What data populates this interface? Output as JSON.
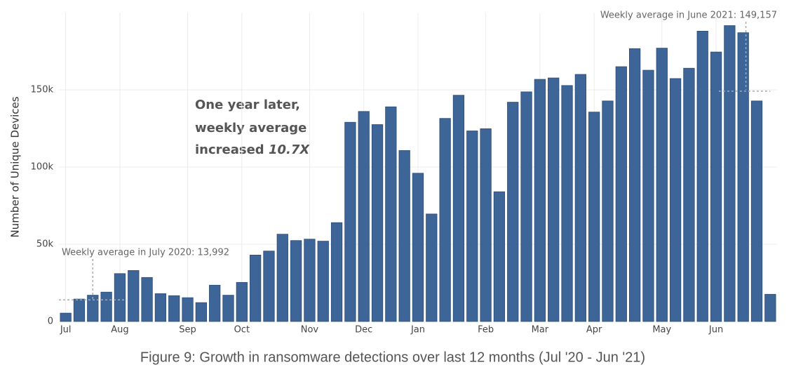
{
  "chart_data": {
    "type": "bar",
    "y_label": "Number of Unique Devices",
    "caption": "Figure 9: Growth in ransomware detections over last 12 months (Jul '20 - Jun '21)",
    "color": "#3d6597",
    "grid": true,
    "categories": [
      "Jul",
      null,
      null,
      null,
      "Aug",
      null,
      null,
      null,
      null,
      "Sep",
      null,
      null,
      null,
      "Oct",
      null,
      null,
      null,
      null,
      "Nov",
      null,
      null,
      null,
      "Dec",
      null,
      null,
      null,
      "Jan",
      null,
      null,
      null,
      null,
      "Feb",
      null,
      null,
      null,
      "Mar",
      null,
      null,
      null,
      "Apr",
      null,
      null,
      null,
      null,
      "May",
      null,
      null,
      null,
      "Jun",
      null,
      null,
      null,
      null
    ],
    "values": [
      5400,
      14500,
      17000,
      19000,
      31000,
      33000,
      28500,
      18000,
      16700,
      15400,
      12200,
      23500,
      17000,
      25300,
      43000,
      45600,
      56500,
      52400,
      53300,
      52000,
      64000,
      129000,
      136000,
      127500,
      139000,
      110700,
      96000,
      69600,
      131500,
      146500,
      123400,
      124800,
      84000,
      142000,
      148700,
      156800,
      157700,
      152800,
      160000,
      135600,
      142800,
      165000,
      176700,
      162700,
      177000,
      157300,
      164000,
      188000,
      174500,
      191600,
      187000,
      142800,
      17600
    ],
    "ylim": [
      0,
      200000
    ],
    "yticks": [
      0,
      {
        "value": 50000,
        "label": "50k"
      },
      {
        "value": 100000,
        "label": "100k"
      },
      {
        "value": 150000,
        "label": "150k"
      }
    ],
    "reference_lines": [
      {
        "label": "Weekly average in July 2020: 13,992",
        "value": 13992
      },
      {
        "label": "Weekly average in June 2021: 149,157",
        "value": 149157
      }
    ],
    "annotation": {
      "lines": [
        "One year later,",
        "weekly average",
        "increased"
      ],
      "emphasis": "10.7X"
    }
  }
}
